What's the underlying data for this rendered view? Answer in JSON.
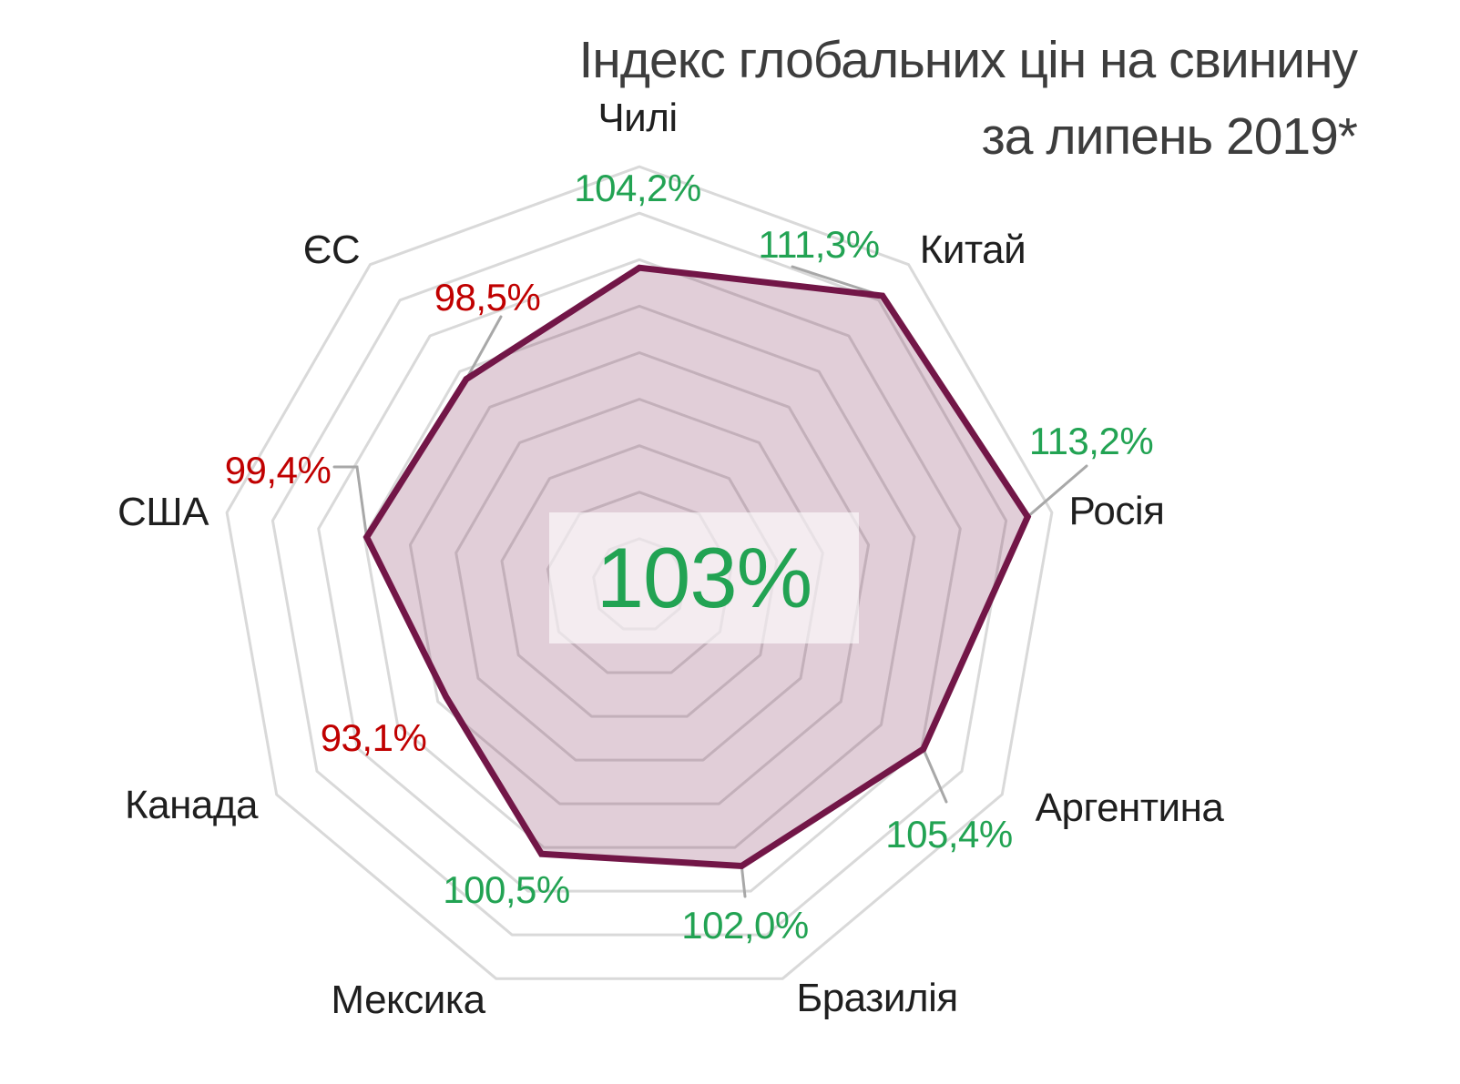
{
  "title": {
    "line1": "Індекс глобальних цін на свинину",
    "line2": "за липень 2019*"
  },
  "chart_data": {
    "type": "radar",
    "title": "Індекс глобальних цін на свинину за липень 2019*",
    "categories": [
      "Чилі",
      "Китай",
      "Росія",
      "Аргентина",
      "Бразилія",
      "Мексика",
      "Канада",
      "США",
      "ЄС"
    ],
    "values": [
      104.2,
      111.3,
      113.2,
      105.4,
      102.0,
      100.5,
      93.1,
      99.4,
      98.5
    ],
    "value_labels": [
      "104,2%",
      "111,3%",
      "113,2%",
      "105,4%",
      "102,0%",
      "100,5%",
      "93,1%",
      "99,4%",
      "98,5%"
    ],
    "center_annotation": "103%",
    "axis": {
      "rings": 9,
      "start": "top",
      "direction": "clockwise",
      "grid": "polygon"
    },
    "legend": false,
    "colors": {
      "value_positive": "#22a353",
      "value_negative": "#c00000",
      "series_line": "#721647",
      "series_fill_rgb": "114,22,71",
      "series_fill_alpha": 0.21,
      "grid": "#d9d9d9",
      "leader": "#a8a8a8",
      "category_label": "#1f1f1f",
      "title": "#3d3d3d"
    }
  }
}
